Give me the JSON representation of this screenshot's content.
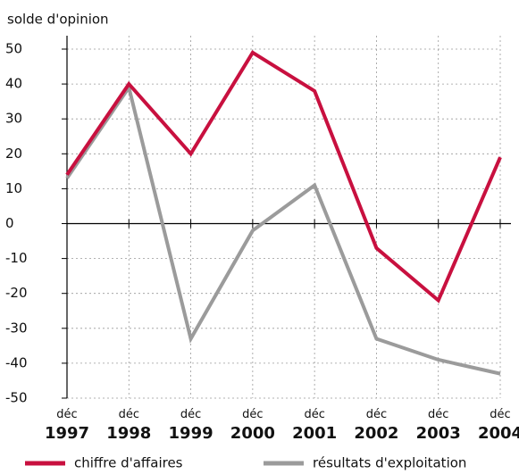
{
  "chart_data": {
    "type": "line",
    "y_label": "solde d'opinion",
    "categories": [
      "déc 1997",
      "déc 1998",
      "déc 1999",
      "déc 2000",
      "déc 2001",
      "déc 2002",
      "déc 2003",
      "déc 2004"
    ],
    "series": [
      {
        "name": "chiffre d'affaires",
        "color": "#c8103f",
        "values": [
          14,
          40,
          20,
          49,
          38,
          -7,
          -22,
          19
        ]
      },
      {
        "name": "résultats d'exploitation",
        "color": "#9b9b9b",
        "values": [
          13,
          39,
          -33,
          -2,
          11,
          -33,
          -39,
          -43
        ]
      }
    ],
    "ylim": [
      -50,
      50
    ],
    "yticks": [
      -50,
      -40,
      -30,
      -20,
      -10,
      0,
      10,
      20,
      30,
      40,
      50
    ],
    "grid": true,
    "legend": "bottom"
  }
}
